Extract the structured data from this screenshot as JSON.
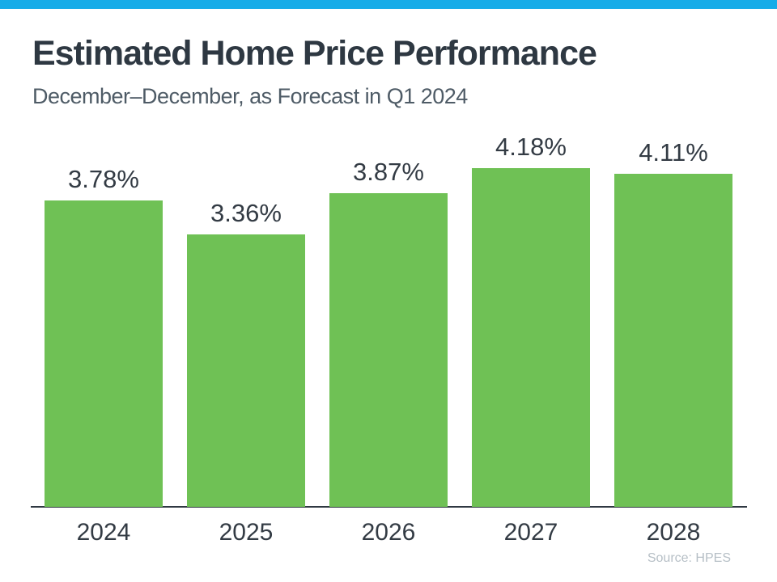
{
  "page": {
    "accent_bar_color": "#17ace8",
    "background_color": "#ffffff"
  },
  "header": {
    "title": "Estimated Home Price Performance",
    "subtitle": "December–December, as Forecast in Q1 2024"
  },
  "chart_data": {
    "type": "bar",
    "categories": [
      "2024",
      "2025",
      "2026",
      "2027",
      "2028"
    ],
    "values": [
      3.78,
      3.36,
      3.87,
      4.18,
      4.11
    ],
    "value_labels": [
      "3.78%",
      "3.36%",
      "3.87%",
      "4.18%",
      "4.11%"
    ],
    "title": "Estimated Home Price Performance",
    "subtitle": "December–December, as Forecast in Q1 2024",
    "xlabel": "",
    "ylabel": "",
    "ylim": [
      0,
      4.5
    ],
    "grid": false,
    "legend": false,
    "bar_color": "#6fc155",
    "axis_line_color": "#2f3842",
    "label_color": "#333b44"
  },
  "footer": {
    "source": "Source: HPES"
  }
}
